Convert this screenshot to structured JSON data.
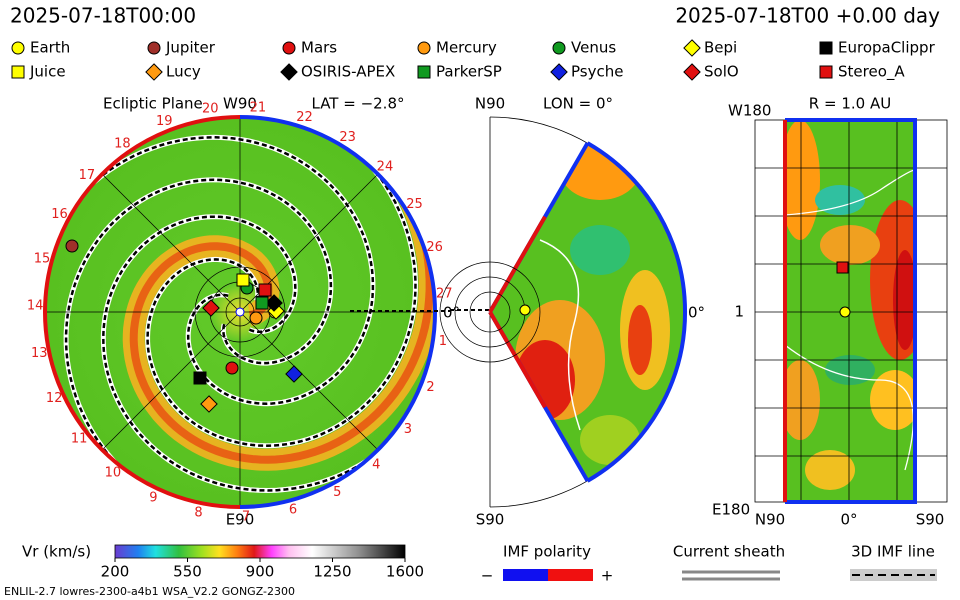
{
  "header": {
    "left": "2025-07-18T00:00",
    "right": "2025-07-18T00 +0.00 day"
  },
  "legend": [
    {
      "name": "Earth",
      "color": "#ffff00",
      "shape": "circle"
    },
    {
      "name": "Jupiter",
      "color": "#a0302a",
      "shape": "circle"
    },
    {
      "name": "Mars",
      "color": "#e01010",
      "shape": "circle"
    },
    {
      "name": "Mercury",
      "color": "#ff9a10",
      "shape": "circle"
    },
    {
      "name": "Venus",
      "color": "#109a20",
      "shape": "circle"
    },
    {
      "name": "Bepi",
      "color": "#ffff00",
      "shape": "diamond"
    },
    {
      "name": "EuropaClippr",
      "color": "#000000",
      "shape": "square"
    },
    {
      "name": "Juice",
      "color": "#ffff00",
      "shape": "square"
    },
    {
      "name": "Lucy",
      "color": "#ff9a10",
      "shape": "diamond"
    },
    {
      "name": "OSIRIS-APEX",
      "color": "#000000",
      "shape": "diamond"
    },
    {
      "name": "ParkerSP",
      "color": "#109a20",
      "shape": "square"
    },
    {
      "name": "Psyche",
      "color": "#1020e0",
      "shape": "diamond"
    },
    {
      "name": "SolO",
      "color": "#e01010",
      "shape": "diamond"
    },
    {
      "name": "Stereo_A",
      "color": "#e01010",
      "shape": "square"
    }
  ],
  "ecliptic": {
    "title": "Ecliptic Plane",
    "top": "W90",
    "lat": "LAT = −2.8°",
    "bottom": "E90",
    "right": "0°",
    "carrington": [
      "1",
      "2",
      "3",
      "4",
      "5",
      "6",
      "7",
      "8",
      "9",
      "10",
      "11",
      "12",
      "13",
      "14",
      "15",
      "16",
      "17",
      "18",
      "19",
      "20",
      "21",
      "22",
      "23",
      "24",
      "25",
      "26",
      "27"
    ]
  },
  "meridional": {
    "top": "N90",
    "lon": "LON = 0°",
    "bottom": "S90",
    "right": "0°"
  },
  "radial": {
    "top_left": "W180",
    "title": "R = 1.0 AU",
    "bottom_left": "E180",
    "mid": "1",
    "x_left": "N90",
    "x_mid": "0°",
    "x_right": "S90"
  },
  "colorbar": {
    "label": "Vr (km/s)",
    "lim": [
      200,
      1600
    ],
    "ticks": [
      200,
      550,
      900,
      1250,
      1600
    ]
  },
  "imf": {
    "title": "IMF polarity",
    "minus": "−",
    "plus": "+"
  },
  "sheath": "Current sheath",
  "imf_line": "3D IMF line",
  "footer": "ENLIL-2.7 lowres-2300-a4b1 WSA_V2.2 GONGZ-2300"
}
